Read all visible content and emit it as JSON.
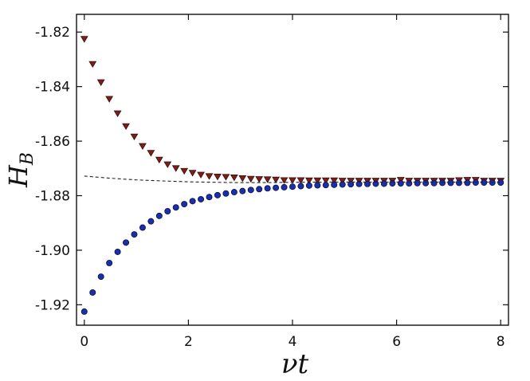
{
  "chart_data": {
    "type": "scatter",
    "title": "",
    "xlabel": "νt",
    "ylabel": "H",
    "ylabel_subscript": "B",
    "xlim": [
      -0.15,
      8.15
    ],
    "ylim": [
      -1.9275,
      -1.8135
    ],
    "xticks": [
      0,
      2,
      4,
      6,
      8
    ],
    "xtick_labels": [
      "0",
      "2",
      "4",
      "6",
      "8"
    ],
    "yticks": [
      -1.82,
      -1.84,
      -1.86,
      -1.88,
      -1.9,
      -1.92
    ],
    "ytick_labels": [
      "-1.82",
      "-1.84",
      "-1.86",
      "-1.88",
      "-1.90",
      "-1.92"
    ],
    "grid": false,
    "legend": false,
    "series": [
      {
        "marker": "triangle-down",
        "color": "#7a1f1a",
        "edge_color": "#3a0a08",
        "x": [
          0.0,
          0.16,
          0.32,
          0.48,
          0.64,
          0.8,
          0.96,
          1.12,
          1.28,
          1.44,
          1.6,
          1.76,
          1.92,
          2.08,
          2.24,
          2.4,
          2.56,
          2.72,
          2.88,
          3.04,
          3.2,
          3.36,
          3.52,
          3.68,
          3.84,
          4.0,
          4.16,
          4.32,
          4.48,
          4.64,
          4.8,
          4.96,
          5.12,
          5.28,
          5.44,
          5.6,
          5.76,
          5.92,
          6.08,
          6.24,
          6.4,
          6.56,
          6.72,
          6.88,
          7.04,
          7.2,
          7.36,
          7.52,
          7.68,
          7.84,
          8.0
        ],
        "y": [
          -1.8225,
          -1.8317,
          -1.8384,
          -1.8445,
          -1.8498,
          -1.8545,
          -1.8583,
          -1.8618,
          -1.8643,
          -1.8668,
          -1.8685,
          -1.8699,
          -1.8709,
          -1.8716,
          -1.8723,
          -1.8728,
          -1.873,
          -1.8731,
          -1.8733,
          -1.8736,
          -1.8738,
          -1.8739,
          -1.874,
          -1.8741,
          -1.8743,
          -1.8743,
          -1.8743,
          -1.8744,
          -1.8744,
          -1.8744,
          -1.8744,
          -1.8745,
          -1.8745,
          -1.8745,
          -1.8745,
          -1.8745,
          -1.8745,
          -1.8745,
          -1.8742,
          -1.8745,
          -1.8745,
          -1.8745,
          -1.8745,
          -1.8745,
          -1.8745,
          -1.8743,
          -1.8742,
          -1.8742,
          -1.8745,
          -1.8745,
          -1.8745
        ]
      },
      {
        "marker": "circle",
        "color": "#1b2fa6",
        "edge_color": "#0a1050",
        "x": [
          0.0,
          0.16,
          0.32,
          0.48,
          0.64,
          0.8,
          0.96,
          1.12,
          1.28,
          1.44,
          1.6,
          1.76,
          1.92,
          2.08,
          2.24,
          2.4,
          2.56,
          2.72,
          2.88,
          3.04,
          3.2,
          3.36,
          3.52,
          3.68,
          3.84,
          4.0,
          4.16,
          4.32,
          4.48,
          4.64,
          4.8,
          4.96,
          5.12,
          5.28,
          5.44,
          5.6,
          5.76,
          5.92,
          6.08,
          6.24,
          6.4,
          6.56,
          6.72,
          6.88,
          7.04,
          7.2,
          7.36,
          7.52,
          7.68,
          7.84,
          8.0
        ],
        "y": [
          -1.9225,
          -1.9155,
          -1.9097,
          -1.9047,
          -1.9006,
          -1.8972,
          -1.8942,
          -1.8917,
          -1.8894,
          -1.8874,
          -1.8857,
          -1.8843,
          -1.8831,
          -1.882,
          -1.8813,
          -1.8805,
          -1.8798,
          -1.8792,
          -1.8787,
          -1.8783,
          -1.8779,
          -1.8776,
          -1.8773,
          -1.8771,
          -1.8769,
          -1.8767,
          -1.8765,
          -1.8763,
          -1.8762,
          -1.8761,
          -1.876,
          -1.8759,
          -1.8758,
          -1.8757,
          -1.8757,
          -1.8756,
          -1.8756,
          -1.8755,
          -1.8755,
          -1.8755,
          -1.8754,
          -1.8754,
          -1.8754,
          -1.8753,
          -1.8753,
          -1.8753,
          -1.8753,
          -1.8752,
          -1.8752,
          -1.8752,
          -1.8752
        ]
      },
      {
        "marker": "dashed-line",
        "color": "#222222",
        "x": [
          0.0,
          0.5,
          1.0,
          1.5,
          2.0,
          2.5,
          3.0,
          3.5,
          4.0,
          5.0,
          6.0,
          7.0,
          8.0
        ],
        "y": [
          -1.8728,
          -1.8736,
          -1.8742,
          -1.8746,
          -1.8749,
          -1.8751,
          -1.8752,
          -1.8752,
          -1.8751,
          -1.875,
          -1.875,
          -1.875,
          -1.875
        ]
      }
    ]
  }
}
